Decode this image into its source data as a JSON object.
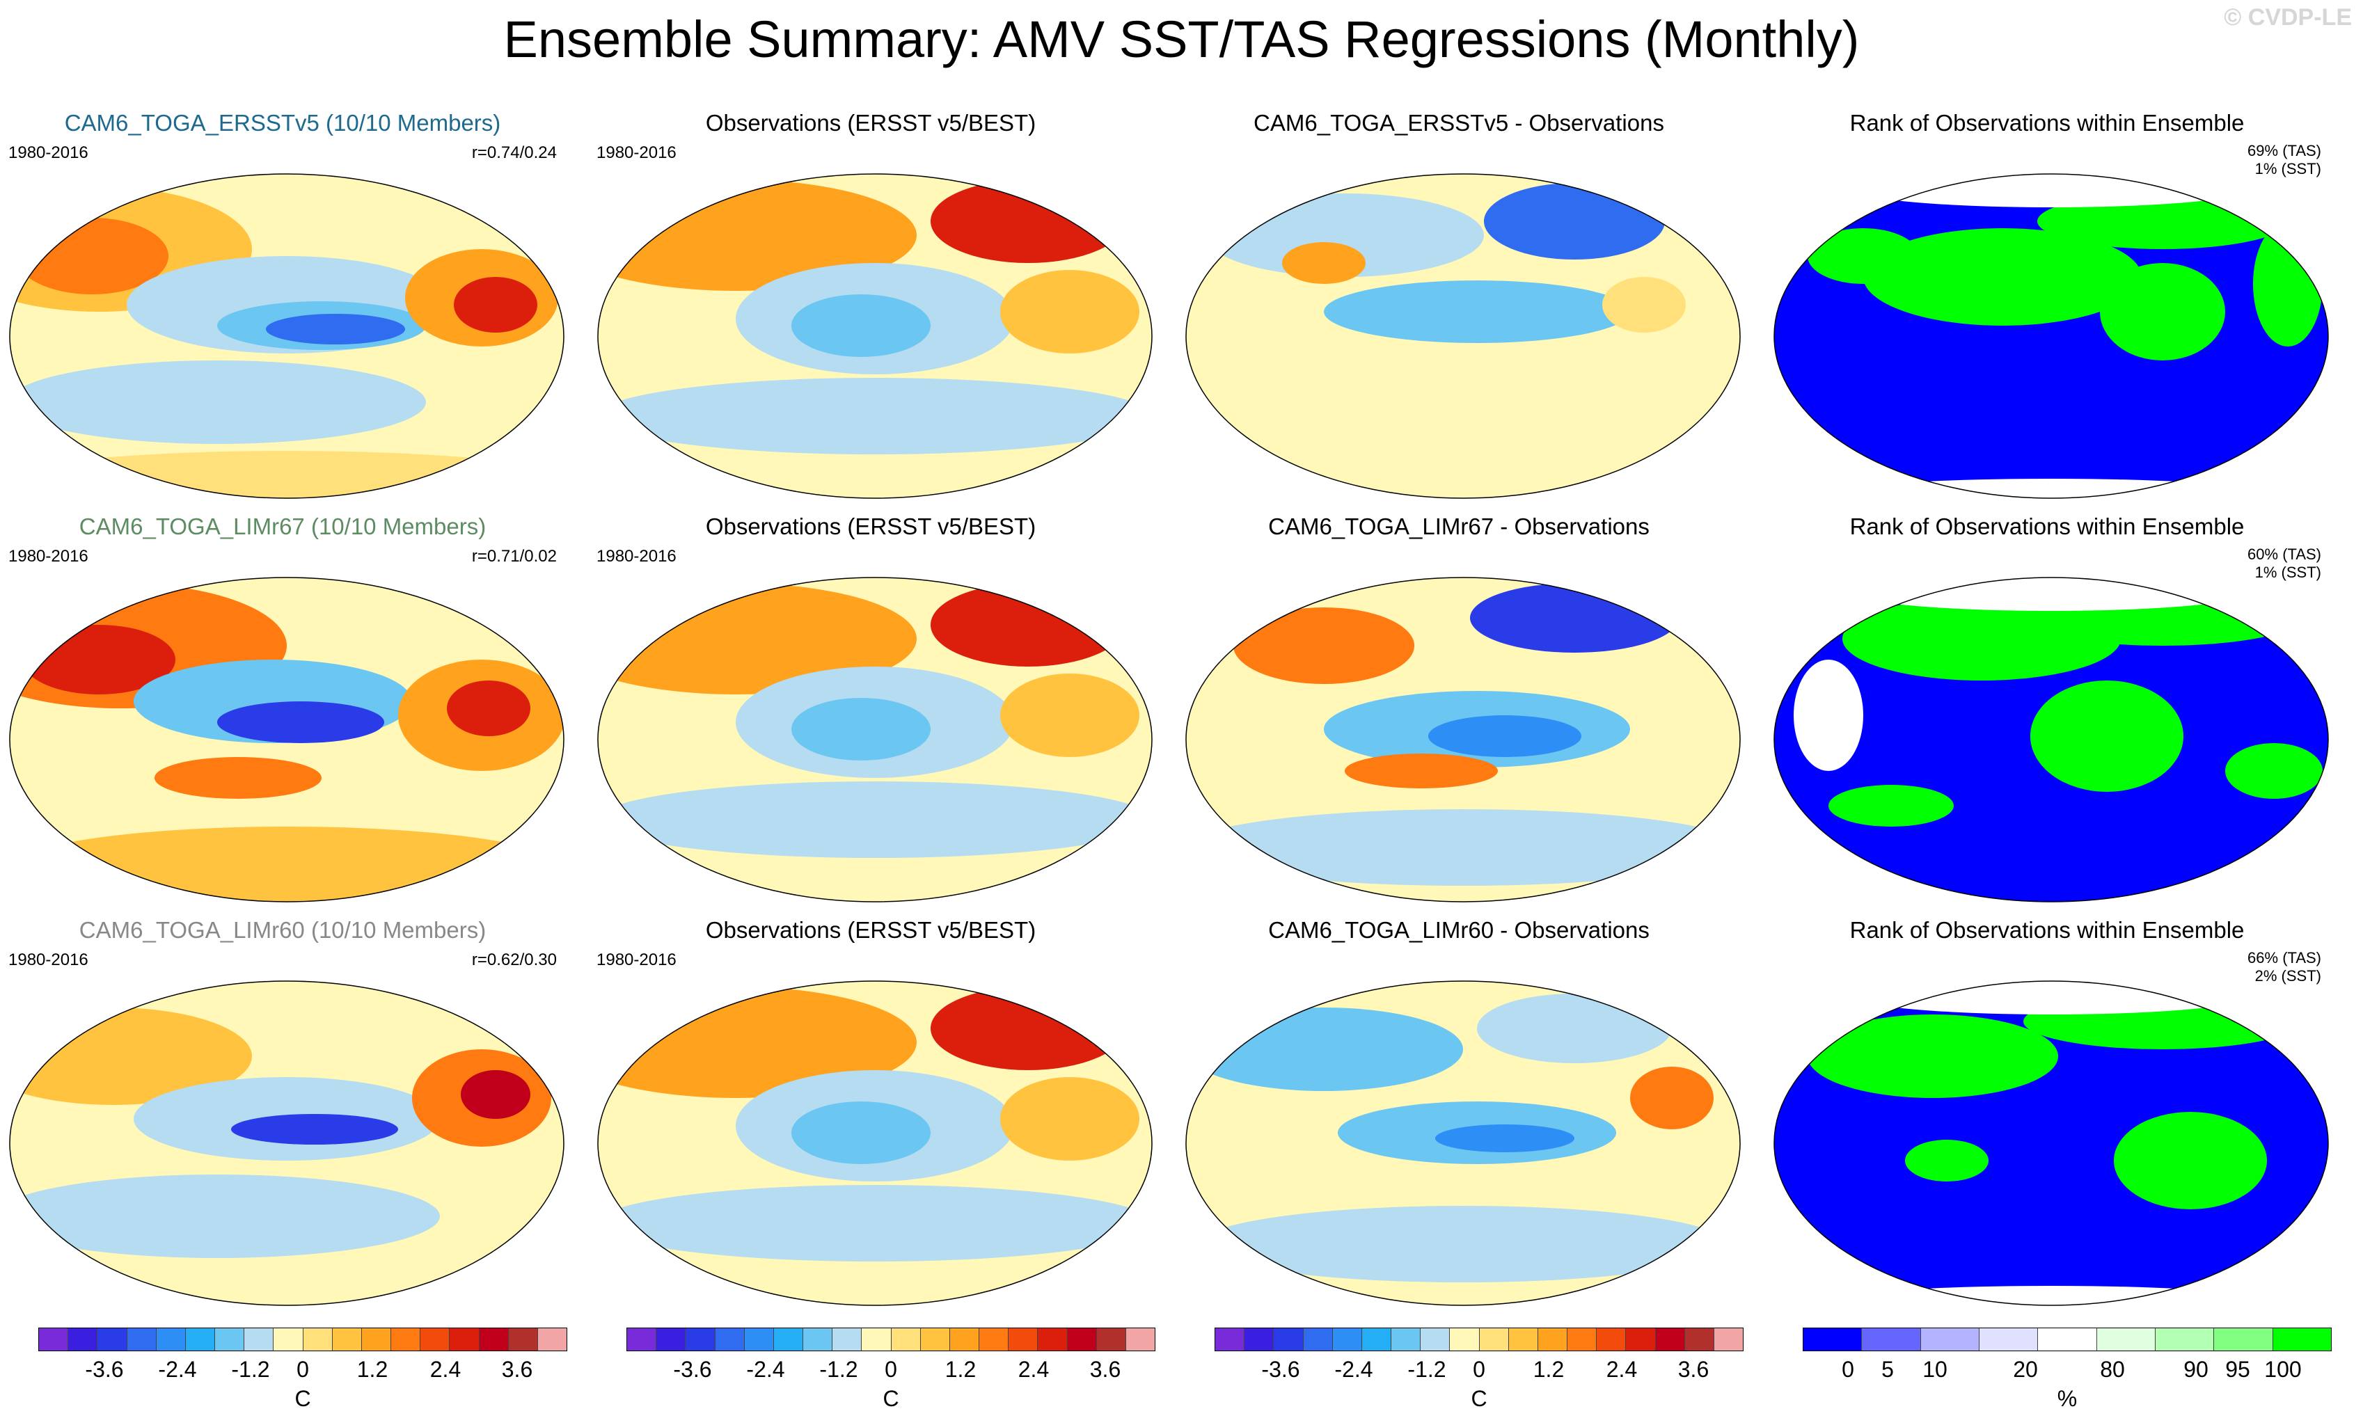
{
  "title": "Ensemble Summary: AMV SST/TAS Regressions (Monthly)",
  "watermark": "© CVDP-LE",
  "colors": {
    "diverging": [
      "#7a2bd9",
      "#3a1fe0",
      "#2a3ce8",
      "#2f6cf0",
      "#2d8ef5",
      "#24aef5",
      "#6cc6f2",
      "#b5dcf0",
      "#fff8b8",
      "#ffe07a",
      "#ffc340",
      "#ffa21e",
      "#ff7a10",
      "#f34b0c",
      "#dc1e0c",
      "#c0001a",
      "#b2302b",
      "#f2a5a5"
    ],
    "rank": [
      "#0000ff",
      "#6666ff",
      "#b3b3ff",
      "#e0e0ff",
      "#ffffff",
      "#e0ffe0",
      "#b3ffb3",
      "#80ff80",
      "#00ff00"
    ],
    "model_titles": [
      "#1e6a8f",
      "#5d8c62",
      "#888888"
    ]
  },
  "rows": [
    {
      "model": {
        "title": "CAM6_TOGA_ERSSTv5 (10/10 Members)",
        "period": "1980-2016",
        "corr": "r=0.74/0.24"
      },
      "obs": {
        "title": "Observations (ERSST v5/BEST)",
        "period": "1980-2016"
      },
      "diff": {
        "title": "CAM6_TOGA_ERSSTv5 - Observations"
      },
      "rank": {
        "title": "Rank of Observations within Ensemble",
        "tas": "69% (TAS)",
        "sst": "1% (SST)"
      }
    },
    {
      "model": {
        "title": "CAM6_TOGA_LIMr67 (10/10 Members)",
        "period": "1980-2016",
        "corr": "r=0.71/0.02"
      },
      "obs": {
        "title": "Observations (ERSST v5/BEST)",
        "period": "1980-2016"
      },
      "diff": {
        "title": "CAM6_TOGA_LIMr67 - Observations"
      },
      "rank": {
        "title": "Rank of Observations within Ensemble",
        "tas": "60% (TAS)",
        "sst": "1% (SST)"
      }
    },
    {
      "model": {
        "title": "CAM6_TOGA_LIMr60 (10/10 Members)",
        "period": "1980-2016",
        "corr": "r=0.62/0.30"
      },
      "obs": {
        "title": "Observations (ERSST v5/BEST)",
        "period": "1980-2016"
      },
      "diff": {
        "title": "CAM6_TOGA_LIMr60 - Observations"
      },
      "rank": {
        "title": "Rank of Observations within Ensemble",
        "tas": "66% (TAS)",
        "sst": "2% (SST)"
      }
    }
  ],
  "colorbars": [
    {
      "labels": [
        "-3.6",
        "-2.4",
        "-1.2",
        "0",
        "1.2",
        "2.4",
        "3.6"
      ],
      "unit": "C"
    },
    {
      "labels": [
        "-3.6",
        "-2.4",
        "-1.2",
        "0",
        "1.2",
        "2.4",
        "3.6"
      ],
      "unit": "C"
    },
    {
      "labels": [
        "-3.6",
        "-2.4",
        "-1.2",
        "0",
        "1.2",
        "2.4",
        "3.6"
      ],
      "unit": "C"
    },
    {
      "labels": [
        "0",
        "5",
        "10",
        "20",
        "80",
        "90",
        "95",
        "100"
      ],
      "unit": "%"
    }
  ]
}
